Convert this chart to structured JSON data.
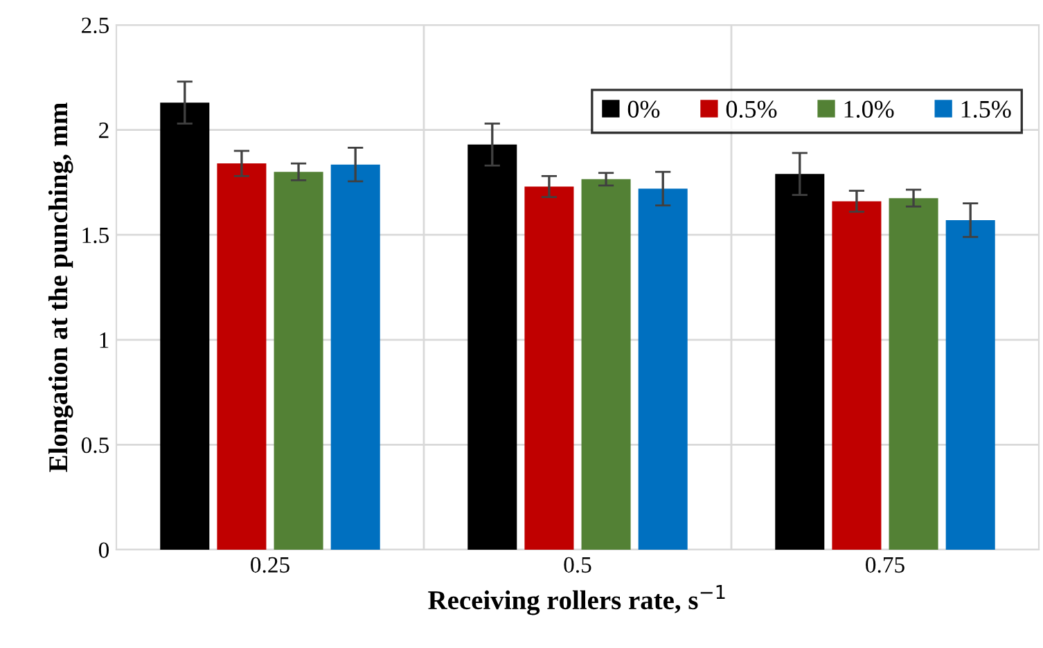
{
  "chart_data": {
    "type": "bar",
    "xlabel": "Receiving rollers rate, s$^{−1}$",
    "ylabel": "Elongation at the punching, mm",
    "categories": [
      "0.25",
      "0.5",
      "0.75"
    ],
    "series": [
      {
        "name": "0%",
        "color": "#000000",
        "values": [
          2.13,
          1.93,
          1.79
        ],
        "errors": [
          0.1,
          0.1,
          0.1
        ]
      },
      {
        "name": "0.5%",
        "color": "#c00000",
        "values": [
          1.84,
          1.73,
          1.66
        ],
        "errors": [
          0.06,
          0.05,
          0.05
        ]
      },
      {
        "name": "1.0%",
        "color": "#538135",
        "values": [
          1.8,
          1.765,
          1.675
        ],
        "errors": [
          0.04,
          0.03,
          0.04
        ]
      },
      {
        "name": "1.5%",
        "color": "#0070c0",
        "values": [
          1.835,
          1.72,
          1.57
        ],
        "errors": [
          0.08,
          0.08,
          0.08
        ]
      }
    ],
    "ylim": [
      0,
      2.5
    ],
    "yticks": [
      0,
      0.5,
      1,
      1.5,
      2,
      2.5
    ],
    "grid": true,
    "legend": "top right"
  }
}
